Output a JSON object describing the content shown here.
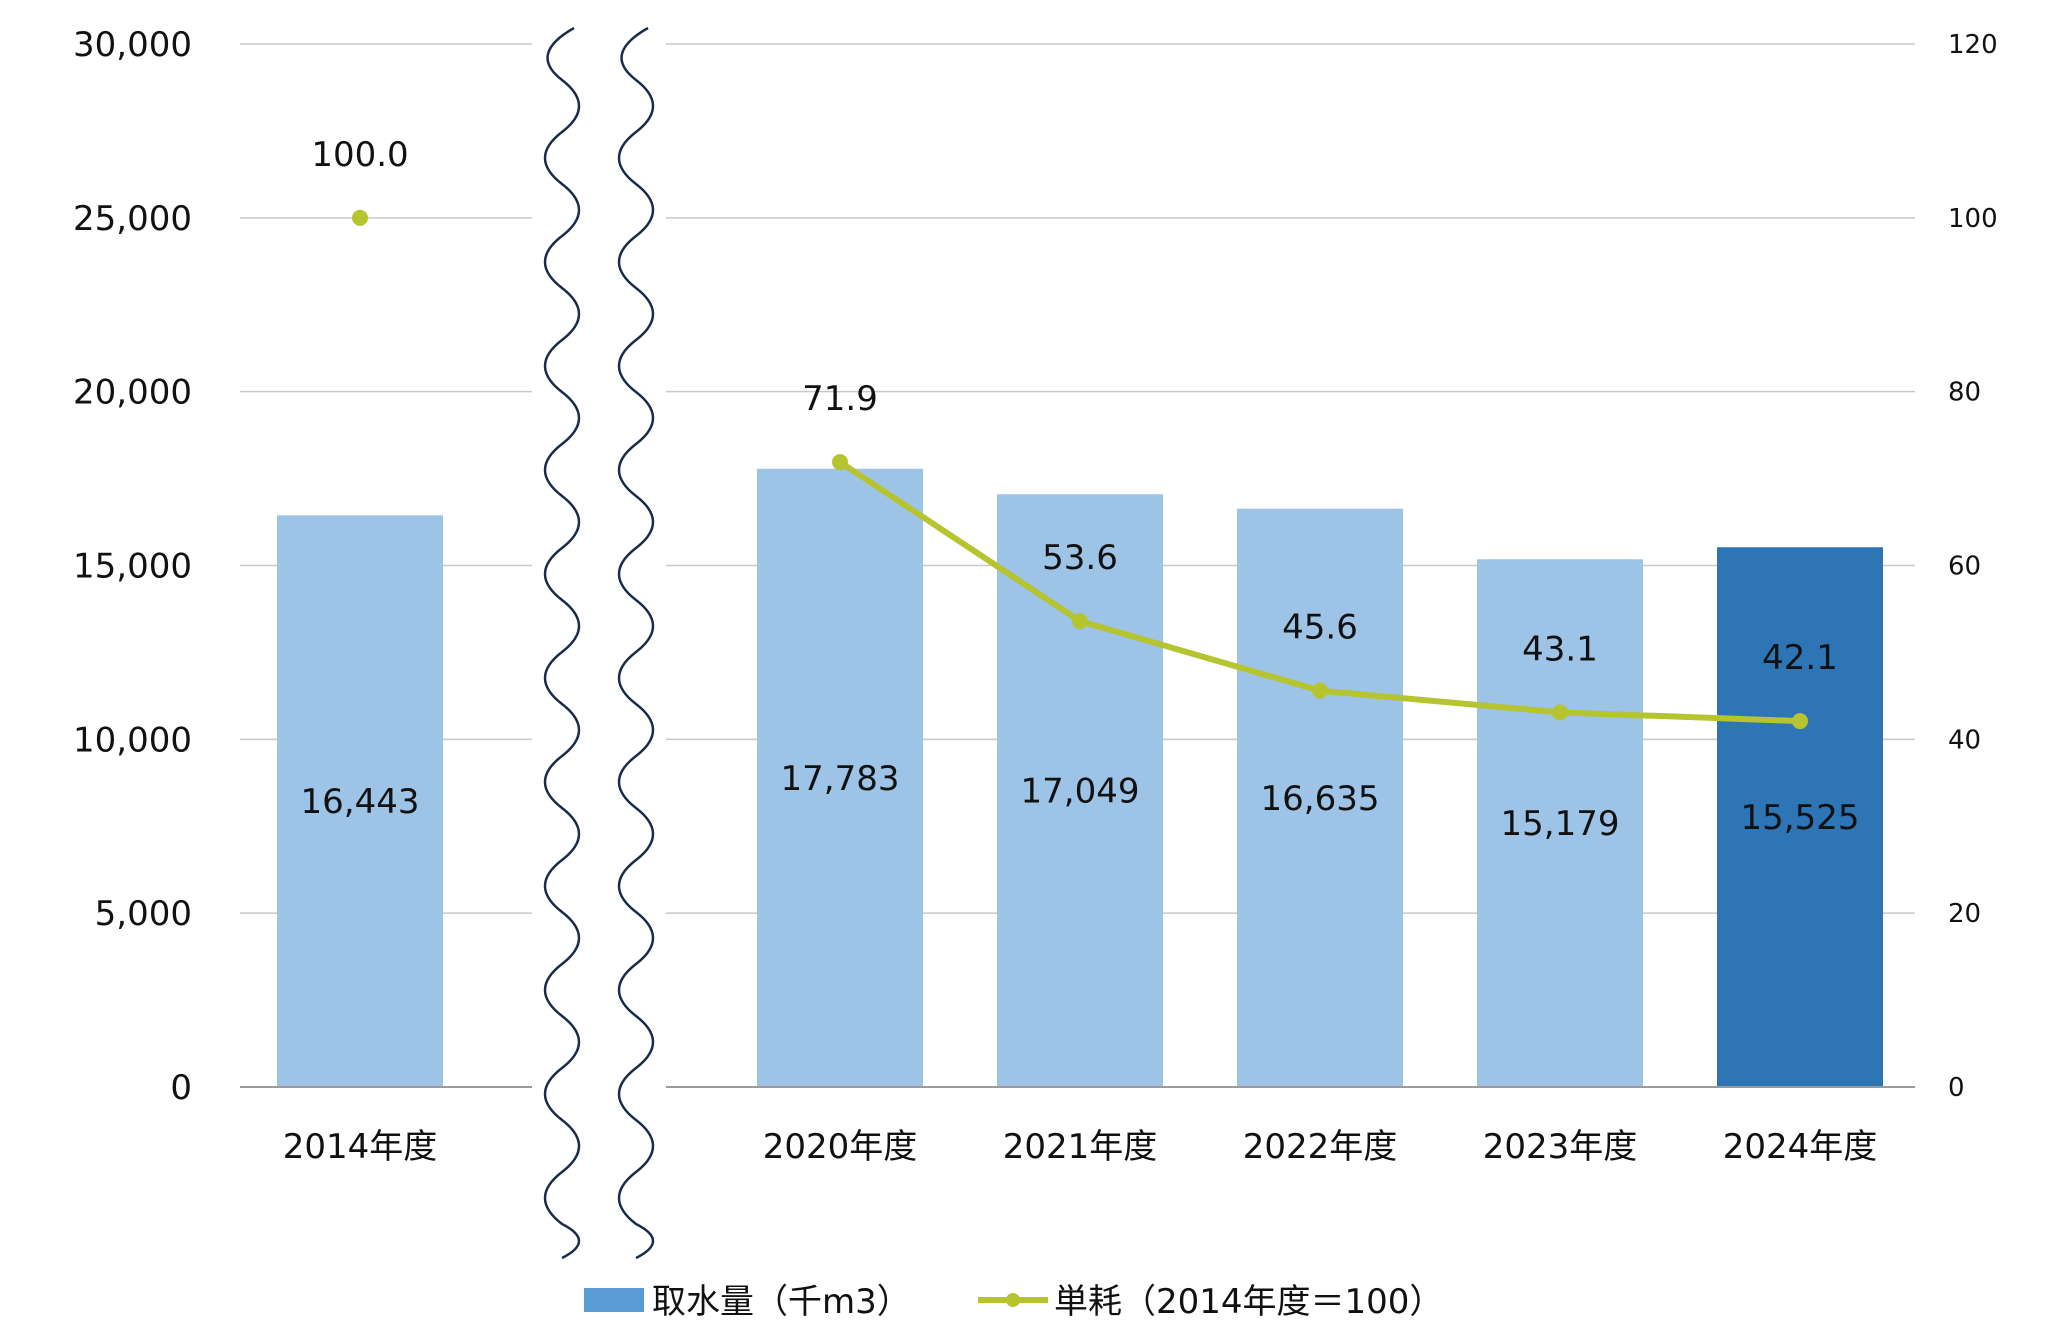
{
  "chart_data": {
    "type": "bar",
    "categories": [
      "2014年度",
      "2020年度",
      "2021年度",
      "2022年度",
      "2023年度",
      "2024年度"
    ],
    "axis_break_after": "2014年度",
    "series": [
      {
        "name": "取水量（千m3）",
        "type": "bar",
        "axis": "left",
        "values": [
          16443,
          17783,
          17049,
          16635,
          15179,
          15525
        ],
        "labels": [
          "16,443",
          "17,783",
          "17,049",
          "16,635",
          "15,179",
          "15,525"
        ],
        "color": "#9dc3e6",
        "highlight_color": "#2e75b6",
        "highlight_index": 5
      },
      {
        "name": "単耗（2014年度＝100）",
        "type": "line",
        "axis": "right",
        "values": [
          100.0,
          71.9,
          53.6,
          45.6,
          43.1,
          42.1
        ],
        "labels": [
          "100.0",
          "71.9",
          "53.6",
          "45.6",
          "43.1",
          "42.1"
        ],
        "color": "#b5c42f",
        "connect_from_index": 1
      }
    ],
    "left_axis": {
      "ylim": [
        0,
        30000
      ],
      "ticks": [
        0,
        5000,
        10000,
        15000,
        20000,
        25000,
        30000
      ],
      "tick_labels": [
        "0",
        "5,000",
        "10,000",
        "15,000",
        "20,000",
        "25,000",
        "30,000"
      ]
    },
    "right_axis": {
      "ylim": [
        0,
        120
      ],
      "ticks": [
        0,
        20,
        40,
        60,
        80,
        100,
        120
      ],
      "tick_labels": [
        "0",
        "20",
        "40",
        "60",
        "80",
        "100",
        "120"
      ]
    },
    "grid": true,
    "legend": {
      "position": "bottom",
      "bar_label": "取水量（千m3）",
      "line_label": "単耗（2014年度＝100）"
    },
    "colors": {
      "grid": "#c8c8c8",
      "axis": "#9a9a9a",
      "break_line": "#1a2c4e"
    }
  }
}
